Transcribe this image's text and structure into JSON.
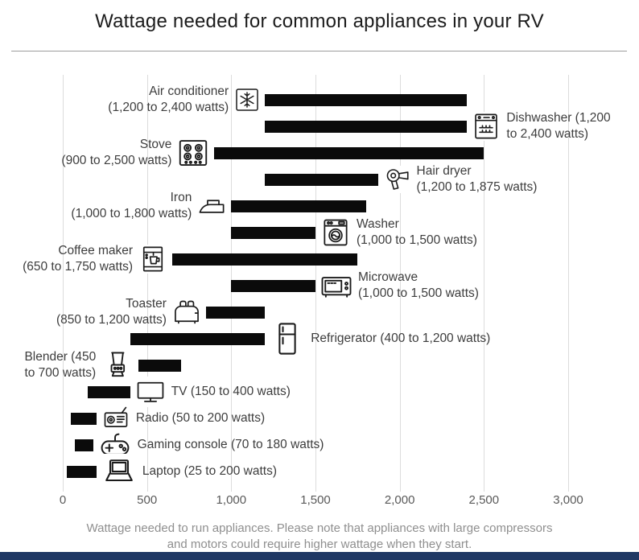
{
  "title": "Wattage needed for common appliances in your RV",
  "caption_lines": [
    "Wattage needed to run appliances. Please note that appliances with large compressors",
    "and motors could require higher wattage when they start."
  ],
  "colors": {
    "bar": "#0b0b0b",
    "gridline": "#dcdcdc",
    "title_text": "#1c1c1c",
    "label_text": "#3d3d3d",
    "axis_text": "#595959",
    "caption_text": "#8f8f8f",
    "footer_strip": "#1f3864"
  },
  "chart_data": {
    "type": "bar",
    "orientation": "horizontal-range",
    "title": "Wattage needed for common appliances in your RV",
    "xlabel": "",
    "xlim": [
      0,
      3000
    ],
    "grid": true,
    "x_ticks": [
      {
        "value": 0,
        "label": "0"
      },
      {
        "value": 500,
        "label": "500"
      },
      {
        "value": 1000,
        "label": "1,000"
      },
      {
        "value": 1500,
        "label": "1,500"
      },
      {
        "value": 2000,
        "label": "2,000"
      },
      {
        "value": 2500,
        "label": "2,500"
      },
      {
        "value": 3000,
        "label": "3,000"
      }
    ],
    "rows": [
      {
        "id": "air-conditioner",
        "appliance": "Air conditioner",
        "min_watts": 1200,
        "max_watts": 2400,
        "label_lines": [
          "Air conditioner",
          "(1,200 to 2,400 watts)"
        ],
        "label_side": "left",
        "icon": "air-conditioner-icon"
      },
      {
        "id": "dishwasher",
        "appliance": "Dishwasher",
        "min_watts": 1200,
        "max_watts": 2400,
        "label_lines": [
          "Dishwasher (1,200",
          "to 2,400 watts)"
        ],
        "label_side": "right",
        "icon": "dishwasher-icon"
      },
      {
        "id": "stove",
        "appliance": "Stove",
        "min_watts": 900,
        "max_watts": 2500,
        "label_lines": [
          "Stove",
          "(900 to 2,500 watts)"
        ],
        "label_side": "left",
        "icon": "stove-icon"
      },
      {
        "id": "hair-dryer",
        "appliance": "Hair dryer",
        "min_watts": 1200,
        "max_watts": 1875,
        "label_lines": [
          "Hair dryer",
          "(1,200 to 1,875 watts)"
        ],
        "label_side": "right",
        "icon": "hair-dryer-icon"
      },
      {
        "id": "iron",
        "appliance": "Iron",
        "min_watts": 1000,
        "max_watts": 1800,
        "label_lines": [
          "Iron",
          "(1,000 to 1,800 watts)"
        ],
        "label_side": "left",
        "icon": "iron-icon"
      },
      {
        "id": "washer",
        "appliance": "Washer",
        "min_watts": 1000,
        "max_watts": 1500,
        "label_lines": [
          "Washer",
          "(1,000 to 1,500 watts)"
        ],
        "label_side": "right",
        "icon": "washer-icon"
      },
      {
        "id": "coffee-maker",
        "appliance": "Coffee maker",
        "min_watts": 650,
        "max_watts": 1750,
        "label_lines": [
          "Coffee maker",
          "(650 to 1,750 watts)"
        ],
        "label_side": "left",
        "icon": "coffee-maker-icon"
      },
      {
        "id": "microwave",
        "appliance": "Microwave",
        "min_watts": 1000,
        "max_watts": 1500,
        "label_lines": [
          "Microwave",
          "(1,000 to 1,500 watts)"
        ],
        "label_side": "right",
        "icon": "microwave-icon"
      },
      {
        "id": "toaster",
        "appliance": "Toaster",
        "min_watts": 850,
        "max_watts": 1200,
        "label_lines": [
          "Toaster",
          "(850 to 1,200 watts)"
        ],
        "label_side": "left",
        "icon": "toaster-icon"
      },
      {
        "id": "refrigerator",
        "appliance": "Refrigerator",
        "min_watts": 400,
        "max_watts": 1200,
        "label_lines": [
          "Refrigerator (400 to 1,200 watts)"
        ],
        "label_side": "right",
        "icon": "refrigerator-icon"
      },
      {
        "id": "blender",
        "appliance": "Blender",
        "min_watts": 450,
        "max_watts": 700,
        "label_lines": [
          "Blender (450",
          "to 700 watts)"
        ],
        "label_side": "left",
        "icon": "blender-icon"
      },
      {
        "id": "tv",
        "appliance": "TV",
        "min_watts": 150,
        "max_watts": 400,
        "label_lines": [
          "TV (150 to 400 watts)"
        ],
        "label_side": "right",
        "icon": "tv-icon"
      },
      {
        "id": "radio",
        "appliance": "Radio",
        "min_watts": 50,
        "max_watts": 200,
        "label_lines": [
          "Radio (50 to 200 watts)"
        ],
        "label_side": "right",
        "icon": "radio-icon"
      },
      {
        "id": "gaming-console",
        "appliance": "Gaming console",
        "min_watts": 70,
        "max_watts": 180,
        "label_lines": [
          "Gaming console (70 to 180 watts)"
        ],
        "label_side": "right",
        "icon": "gaming-console-icon"
      },
      {
        "id": "laptop",
        "appliance": "Laptop",
        "min_watts": 25,
        "max_watts": 200,
        "label_lines": [
          "Laptop (25 to 200 watts)"
        ],
        "label_side": "right",
        "icon": "laptop-icon"
      }
    ]
  }
}
